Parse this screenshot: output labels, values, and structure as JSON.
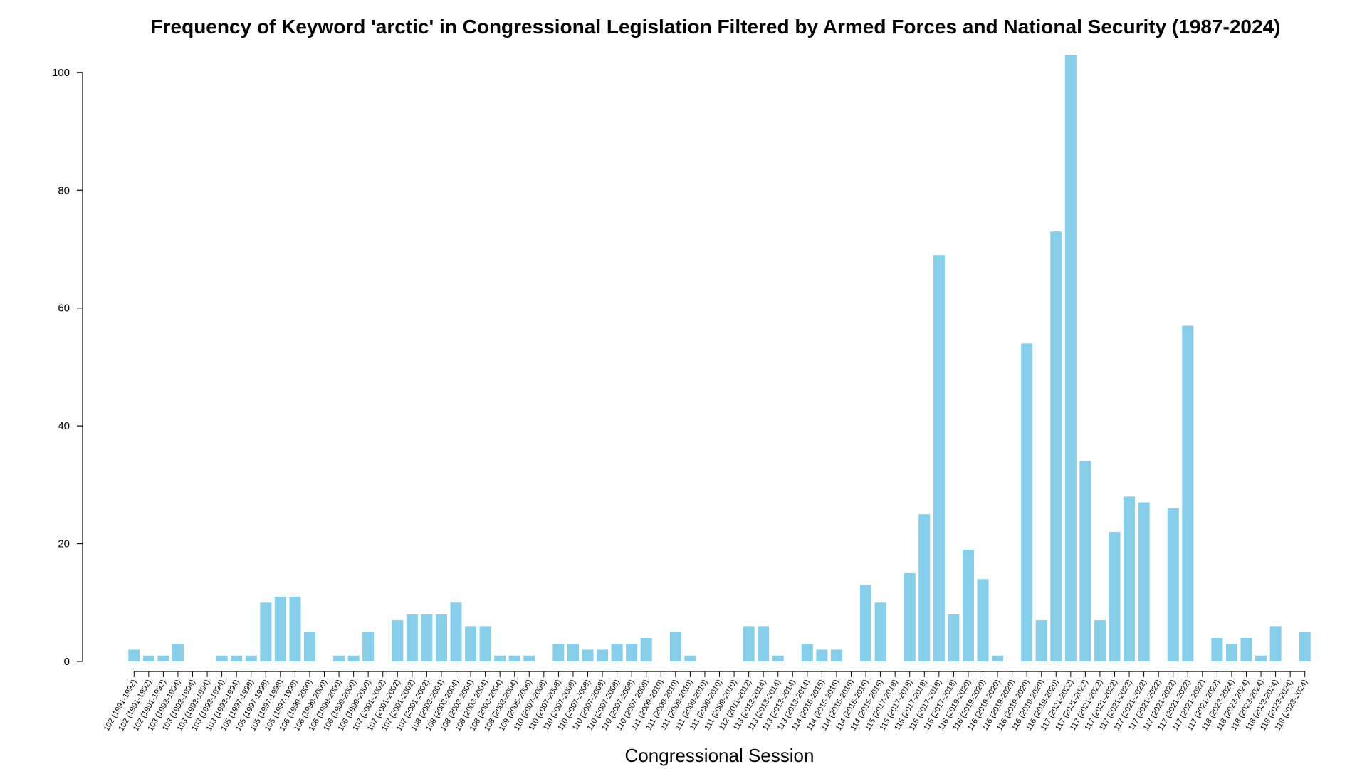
{
  "chart_data": {
    "type": "bar",
    "title": "Frequency of Keyword 'arctic' in Congressional Legislation Filtered by Armed Forces and National Security (1987-2024)",
    "xlabel": "Congressional Session",
    "ylabel": "",
    "ylim": [
      0,
      103
    ],
    "yticks": [
      0,
      20,
      40,
      60,
      80,
      100
    ],
    "bar_color": "#87CEEB",
    "grid": false,
    "categories": [
      "102 (1991-1992)",
      "102 (1991-1992)",
      "102 (1991-1992)",
      "103 (1993-1994)",
      "103 (1993-1994)",
      "103 (1993-1994)",
      "103 (1993-1994)",
      "103 (1993-1994)",
      "105 (1997-1998)",
      "105 (1997-1998)",
      "105 (1997-1998)",
      "105 (1997-1998)",
      "106 (1999-2000)",
      "106 (1999-2000)",
      "106 (1999-2000)",
      "106 (1999-2000)",
      "106 (1999-2000)",
      "107 (2001-2002)",
      "107 (2001-2002)",
      "107 (2001-2002)",
      "107 (2001-2002)",
      "108 (2003-2004)",
      "108 (2003-2004)",
      "108 (2003-2004)",
      "108 (2003-2004)",
      "108 (2003-2004)",
      "108 (2003-2004)",
      "109 (2005-2006)",
      "110 (2007-2008)",
      "110 (2007-2008)",
      "110 (2007-2008)",
      "110 (2007-2008)",
      "110 (2007-2008)",
      "110 (2007-2008)",
      "110 (2007-2008)",
      "110 (2007-2008)",
      "111 (2009-2010)",
      "111 (2009-2010)",
      "111 (2009-2010)",
      "111 (2009-2010)",
      "111 (2009-2010)",
      "111 (2009-2010)",
      "112 (2011-2012)",
      "113 (2013-2014)",
      "113 (2013-2014)",
      "113 (2013-2014)",
      "113 (2013-2014)",
      "114 (2015-2016)",
      "114 (2015-2016)",
      "114 (2015-2016)",
      "114 (2015-2016)",
      "114 (2015-2016)",
      "115 (2017-2018)",
      "115 (2017-2018)",
      "115 (2017-2018)",
      "115 (2017-2018)",
      "115 (2017-2018)",
      "116 (2019-2020)",
      "116 (2019-2020)",
      "116 (2019-2020)",
      "116 (2019-2020)",
      "116 (2019-2020)",
      "116 (2019-2020)",
      "116 (2019-2020)",
      "117 (2021-2022)",
      "117 (2021-2022)",
      "117 (2021-2022)",
      "117 (2021-2022)",
      "117 (2021-2022)",
      "117 (2021-2022)",
      "117 (2021-2022)",
      "117 (2021-2022)",
      "117 (2021-2022)",
      "117 (2021-2022)",
      "117 (2021-2022)",
      "118 (2023-2024)",
      "118 (2023-2024)",
      "118 (2023-2024)",
      "118 (2023-2024)",
      "118 (2023-2024)",
      "118 (2023-2024)"
    ],
    "values": [
      2,
      1,
      1,
      3,
      0,
      0,
      1,
      1,
      1,
      10,
      11,
      11,
      5,
      0,
      1,
      1,
      5,
      0,
      7,
      8,
      8,
      8,
      10,
      6,
      6,
      1,
      1,
      1,
      0,
      3,
      3,
      2,
      2,
      3,
      3,
      4,
      0,
      5,
      1,
      0,
      0,
      0,
      6,
      6,
      1,
      0,
      3,
      2,
      2,
      0,
      13,
      10,
      0,
      15,
      25,
      69,
      8,
      19,
      14,
      1,
      0,
      54,
      7,
      73,
      103,
      34,
      7,
      22,
      28,
      27,
      0,
      26,
      57,
      0,
      4,
      3,
      4,
      1,
      6,
      0,
      5
    ]
  }
}
